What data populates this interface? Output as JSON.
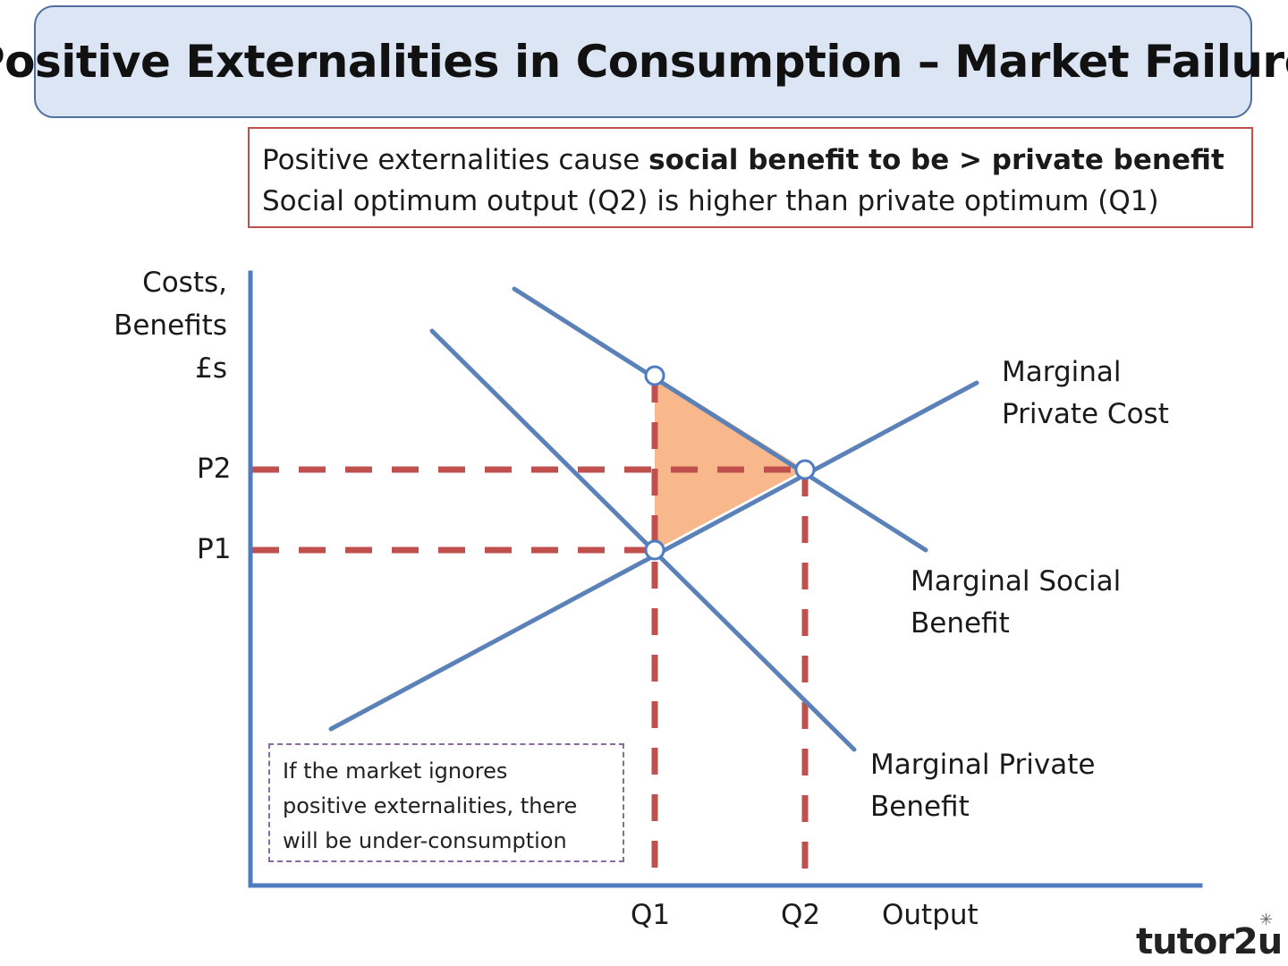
{
  "title": "Positive Externalities in Consumption – Market Failure",
  "info": {
    "line1_prefix": "Positive externalities cause ",
    "line1_bold": "social benefit to be > private benefit",
    "line2": "Social optimum output (Q2) is higher than private optimum (Q1)"
  },
  "y_axis": {
    "line1": "Costs,",
    "line2": "Benefits",
    "line3": "£s"
  },
  "x_axis": {
    "label": "Output"
  },
  "prices": {
    "p1": "P1",
    "p2": "P2"
  },
  "quantities": {
    "q1": "Q1",
    "q2": "Q2"
  },
  "curves": {
    "mpc": {
      "line1": "Marginal",
      "line2": "Private Cost"
    },
    "msb": {
      "line1": "Marginal Social",
      "line2": "Benefit"
    },
    "mpb": {
      "line1": "Marginal Private",
      "line2": "Benefit"
    }
  },
  "note": {
    "line1": "If the market ignores",
    "line2": "positive externalities, there",
    "line3": "will be under-consumption"
  },
  "brand": "tutor2u",
  "colors": {
    "axis": "#4f7cc0",
    "curve": "#5b82b8",
    "dashed": "#c0504d",
    "welfare_loss": "#f8b88b",
    "title_fill": "#dbe5f3"
  }
}
